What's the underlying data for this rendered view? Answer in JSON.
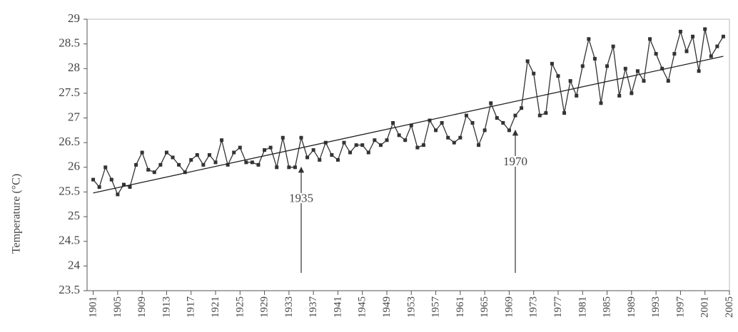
{
  "chart_data": {
    "type": "line",
    "y_label": "Temperature (°C)",
    "x": [
      1901,
      1902,
      1903,
      1904,
      1905,
      1906,
      1907,
      1908,
      1909,
      1910,
      1911,
      1912,
      1913,
      1914,
      1915,
      1916,
      1917,
      1918,
      1919,
      1920,
      1921,
      1922,
      1923,
      1924,
      1925,
      1926,
      1927,
      1928,
      1929,
      1930,
      1931,
      1932,
      1933,
      1934,
      1935,
      1936,
      1937,
      1938,
      1939,
      1940,
      1941,
      1942,
      1943,
      1944,
      1945,
      1946,
      1947,
      1948,
      1949,
      1950,
      1951,
      1952,
      1953,
      1954,
      1955,
      1956,
      1957,
      1958,
      1959,
      1960,
      1961,
      1962,
      1963,
      1964,
      1965,
      1966,
      1967,
      1968,
      1969,
      1970,
      1971,
      1972,
      1973,
      1974,
      1975,
      1976,
      1977,
      1978,
      1979,
      1980,
      1981,
      1982,
      1983,
      1984,
      1985,
      1986,
      1987,
      1988,
      1989,
      1990,
      1991,
      1992,
      1993,
      1994,
      1995,
      1996,
      1997,
      1998,
      1999,
      2000,
      2001,
      2002,
      2003,
      2004
    ],
    "series": [
      {
        "color": "#333333",
        "values": [
          25.75,
          25.6,
          26.0,
          25.75,
          25.45,
          25.65,
          25.6,
          26.05,
          26.3,
          25.95,
          25.9,
          26.05,
          26.3,
          26.2,
          26.05,
          25.9,
          26.15,
          26.25,
          26.05,
          26.25,
          26.1,
          26.55,
          26.05,
          26.3,
          26.4,
          26.1,
          26.1,
          26.05,
          26.35,
          26.4,
          26.0,
          26.6,
          26.0,
          26.0,
          26.6,
          26.2,
          26.35,
          26.15,
          26.5,
          26.25,
          26.15,
          26.5,
          26.3,
          26.45,
          26.45,
          26.3,
          26.55,
          26.45,
          26.55,
          26.9,
          26.65,
          26.55,
          26.85,
          26.4,
          26.45,
          26.95,
          26.75,
          26.9,
          26.6,
          26.5,
          26.6,
          27.05,
          26.9,
          26.45,
          26.75,
          27.3,
          27.0,
          26.9,
          26.75,
          27.05,
          27.2,
          28.15,
          27.9,
          27.05,
          27.1,
          28.1,
          27.85,
          27.1,
          27.75,
          27.45,
          28.05,
          28.6,
          28.2,
          27.3,
          28.05,
          28.45,
          27.45,
          28.0,
          27.5,
          27.95,
          27.75,
          28.6,
          28.3,
          28.0,
          27.75,
          28.3,
          28.75,
          28.35,
          28.65,
          27.95,
          28.8,
          28.25,
          28.45,
          28.65
        ]
      }
    ],
    "trend": {
      "color": "#222222",
      "x": [
        1901,
        2004
      ],
      "values": [
        25.48,
        28.25
      ]
    },
    "annotations": [
      {
        "text": "1935",
        "x": 1935,
        "y": 26.0
      },
      {
        "text": "1970",
        "x": 1970,
        "y": 26.75
      }
    ],
    "xlim": [
      1900,
      2005
    ],
    "xticks": [
      1901,
      1905,
      1909,
      1913,
      1917,
      1921,
      1925,
      1929,
      1933,
      1937,
      1941,
      1945,
      1949,
      1953,
      1957,
      1961,
      1965,
      1969,
      1973,
      1977,
      1981,
      1985,
      1989,
      1993,
      1997,
      2001,
      2005
    ],
    "ylim": [
      23.5,
      29
    ],
    "yticks": [
      23.5,
      24,
      24.5,
      25,
      25.5,
      26,
      26.5,
      27,
      27.5,
      28,
      28.5,
      29
    ]
  }
}
